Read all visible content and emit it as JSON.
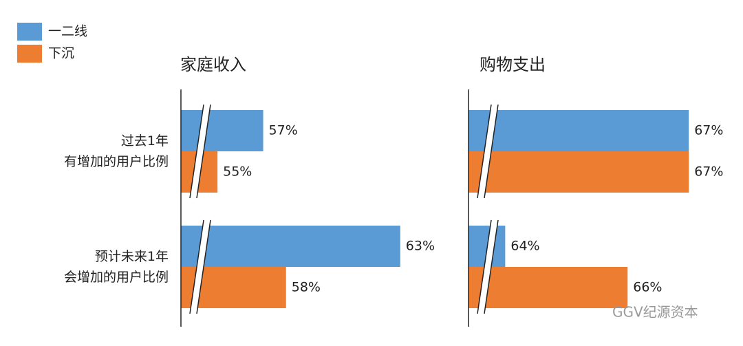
{
  "chart_data": [
    {
      "type": "bar",
      "orientation": "horizontal",
      "title": "家庭收入",
      "categories": [
        "过去1年\n有增加的用户比例",
        "预计未来1年\n会增加的用户比例"
      ],
      "series": [
        {
          "name": "一二线",
          "color": "#5b9bd5",
          "values": [
            57,
            63
          ],
          "value_labels": [
            "57%",
            "63%"
          ]
        },
        {
          "name": "下沉",
          "color": "#ed7d31",
          "values": [
            55,
            58
          ],
          "value_labels": [
            "55%",
            "58%"
          ]
        }
      ],
      "xlim": [
        53.4,
        64
      ],
      "axis_break": true
    },
    {
      "type": "bar",
      "orientation": "horizontal",
      "title": "购物支出",
      "categories": [
        null,
        null
      ],
      "series": [
        {
          "color": "#5b9bd5",
          "values": [
            67,
            64
          ],
          "value_labels": [
            "67%",
            "64%"
          ]
        },
        {
          "color": "#ed7d31",
          "values": [
            67,
            66
          ],
          "value_labels": [
            "67%",
            "66%"
          ]
        }
      ],
      "xlim": [
        63.4,
        67.2
      ],
      "axis_break": true
    }
  ],
  "watermark": "GGV纪源资本"
}
